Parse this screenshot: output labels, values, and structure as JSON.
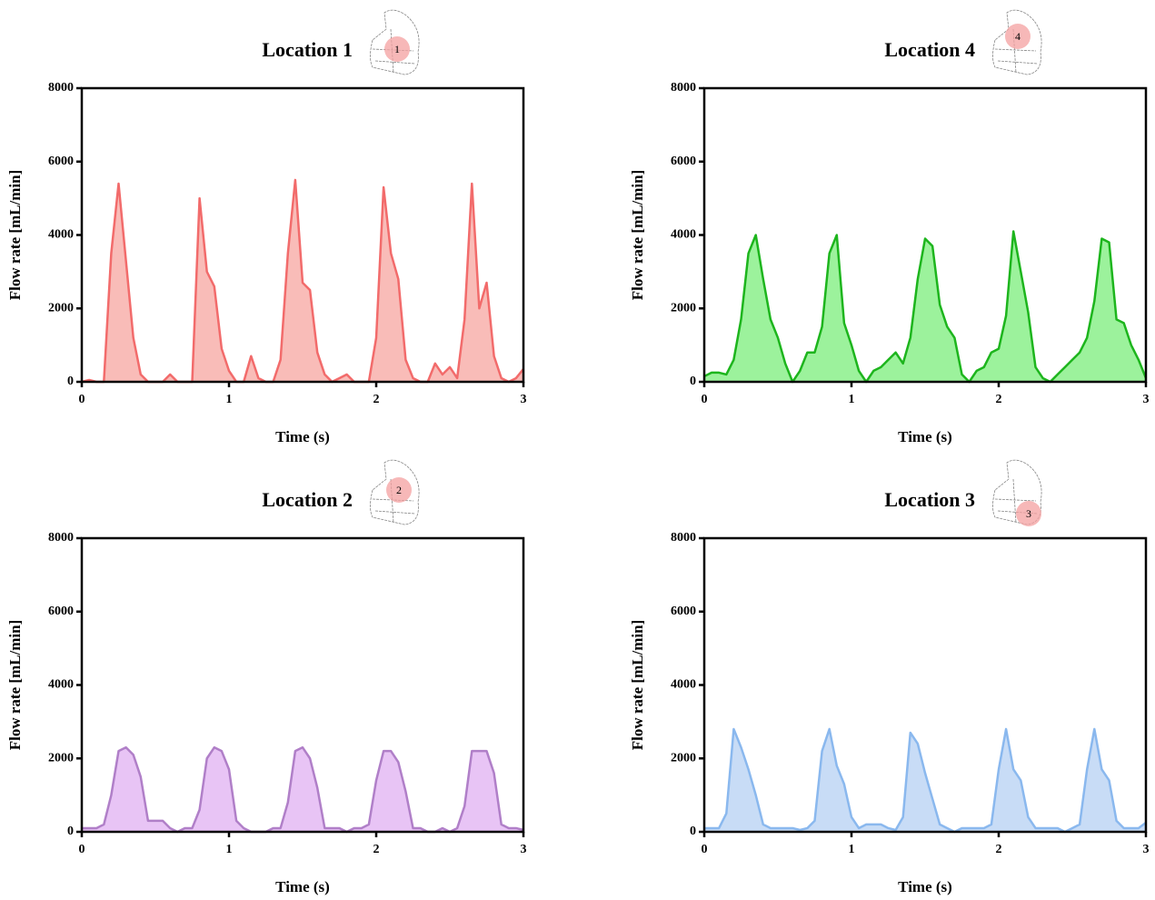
{
  "chart_data": [
    {
      "type": "area",
      "title": "Location 1",
      "marker_label": "1",
      "xlabel": "Time (s)",
      "ylabel": "Flow rate [mL/min]",
      "color": "#f26b6b",
      "fill_color": "#f9bcb8",
      "x": [
        0,
        0.05,
        0.1,
        0.15,
        0.2,
        0.25,
        0.3,
        0.35,
        0.4,
        0.45,
        0.5,
        0.55,
        0.6,
        0.65,
        0.7,
        0.75,
        0.8,
        0.85,
        0.9,
        0.95,
        1,
        1.05,
        1.1,
        1.15,
        1.2,
        1.25,
        1.3,
        1.35,
        1.4,
        1.45,
        1.5,
        1.55,
        1.6,
        1.65,
        1.7,
        1.75,
        1.8,
        1.85,
        1.9,
        1.95,
        2,
        2.05,
        2.1,
        2.15,
        2.2,
        2.25,
        2.3,
        2.35,
        2.4,
        2.45,
        2.5,
        2.55,
        2.6,
        2.65,
        2.7,
        2.75,
        2.8,
        2.85,
        2.9,
        2.95,
        3
      ],
      "values": [
        0,
        50,
        0,
        0,
        3500,
        5400,
        3300,
        1200,
        200,
        0,
        0,
        0,
        200,
        0,
        0,
        0,
        5000,
        3000,
        2600,
        900,
        300,
        0,
        0,
        700,
        100,
        0,
        0,
        600,
        3500,
        5500,
        2700,
        2500,
        800,
        200,
        0,
        100,
        200,
        0,
        0,
        0,
        1200,
        5300,
        3500,
        2800,
        600,
        100,
        0,
        0,
        500,
        200,
        400,
        100,
        1700,
        5400,
        2000,
        2700,
        700,
        100,
        0,
        100,
        350
      ],
      "xlim": [
        0,
        3
      ],
      "ylim": [
        0,
        8000
      ],
      "xticks": [
        0,
        1,
        2,
        3
      ],
      "yticks": [
        0,
        2000,
        4000,
        6000,
        8000
      ]
    },
    {
      "type": "area",
      "title": "Location 4",
      "marker_label": "4",
      "xlabel": "Time (s)",
      "ylabel": "Flow rate [mL/min]",
      "color": "#1db51d",
      "fill_color": "#9cf29c",
      "x": [
        0,
        0.05,
        0.1,
        0.15,
        0.2,
        0.25,
        0.3,
        0.35,
        0.4,
        0.45,
        0.5,
        0.55,
        0.6,
        0.65,
        0.7,
        0.75,
        0.8,
        0.85,
        0.9,
        0.95,
        1,
        1.05,
        1.1,
        1.15,
        1.2,
        1.25,
        1.3,
        1.35,
        1.4,
        1.45,
        1.5,
        1.55,
        1.6,
        1.65,
        1.7,
        1.75,
        1.8,
        1.85,
        1.9,
        1.95,
        2,
        2.05,
        2.1,
        2.15,
        2.2,
        2.25,
        2.3,
        2.35,
        2.4,
        2.45,
        2.5,
        2.55,
        2.6,
        2.65,
        2.7,
        2.75,
        2.8,
        2.85,
        2.9,
        2.95,
        3
      ],
      "values": [
        150,
        250,
        250,
        200,
        600,
        1700,
        3500,
        4000,
        2800,
        1700,
        1200,
        500,
        0,
        300,
        800,
        800,
        1500,
        3500,
        4000,
        1600,
        1000,
        300,
        0,
        300,
        400,
        600,
        800,
        500,
        1200,
        2800,
        3900,
        3700,
        2100,
        1500,
        1200,
        200,
        0,
        300,
        400,
        800,
        900,
        1800,
        4100,
        3000,
        1900,
        400,
        100,
        0,
        200,
        400,
        600,
        800,
        1200,
        2200,
        3900,
        3800,
        1700,
        1600,
        1000,
        600,
        100
      ],
      "xlim": [
        0,
        3
      ],
      "ylim": [
        0,
        8000
      ],
      "xticks": [
        0,
        1,
        2,
        3
      ],
      "yticks": [
        0,
        2000,
        4000,
        6000,
        8000
      ]
    },
    {
      "type": "area",
      "title": "Location 2",
      "marker_label": "2",
      "xlabel": "Time (s)",
      "ylabel": "Flow rate [mL/min]",
      "color": "#b07fc8",
      "fill_color": "#e8c4f5",
      "x": [
        0,
        0.05,
        0.1,
        0.15,
        0.2,
        0.25,
        0.3,
        0.35,
        0.4,
        0.45,
        0.5,
        0.55,
        0.6,
        0.65,
        0.7,
        0.75,
        0.8,
        0.85,
        0.9,
        0.95,
        1,
        1.05,
        1.1,
        1.15,
        1.2,
        1.25,
        1.3,
        1.35,
        1.4,
        1.45,
        1.5,
        1.55,
        1.6,
        1.65,
        1.7,
        1.75,
        1.8,
        1.85,
        1.9,
        1.95,
        2,
        2.05,
        2.1,
        2.15,
        2.2,
        2.25,
        2.3,
        2.35,
        2.4,
        2.45,
        2.5,
        2.55,
        2.6,
        2.65,
        2.7,
        2.75,
        2.8,
        2.85,
        2.9,
        2.95,
        3
      ],
      "values": [
        100,
        100,
        100,
        200,
        1000,
        2200,
        2300,
        2100,
        1500,
        300,
        300,
        300,
        100,
        0,
        100,
        100,
        600,
        2000,
        2300,
        2200,
        1700,
        300,
        100,
        0,
        0,
        0,
        100,
        100,
        800,
        2200,
        2300,
        2000,
        1200,
        100,
        100,
        100,
        0,
        100,
        100,
        200,
        1400,
        2200,
        2200,
        1900,
        1100,
        100,
        100,
        0,
        0,
        100,
        0,
        100,
        700,
        2200,
        2200,
        2200,
        1600,
        200,
        100,
        100,
        50
      ],
      "xlim": [
        0,
        3
      ],
      "ylim": [
        0,
        8000
      ],
      "xticks": [
        0,
        1,
        2,
        3
      ],
      "yticks": [
        0,
        2000,
        4000,
        6000,
        8000
      ]
    },
    {
      "type": "area",
      "title": "Location 3",
      "marker_label": "3",
      "xlabel": "Time (s)",
      "ylabel": "Flow rate [mL/min]",
      "color": "#8ab8ee",
      "fill_color": "#c8dcf6",
      "x": [
        0,
        0.05,
        0.1,
        0.15,
        0.2,
        0.25,
        0.3,
        0.35,
        0.4,
        0.45,
        0.5,
        0.55,
        0.6,
        0.65,
        0.7,
        0.75,
        0.8,
        0.85,
        0.9,
        0.95,
        1,
        1.05,
        1.1,
        1.15,
        1.2,
        1.25,
        1.3,
        1.35,
        1.4,
        1.45,
        1.5,
        1.55,
        1.6,
        1.65,
        1.7,
        1.75,
        1.8,
        1.85,
        1.9,
        1.95,
        2,
        2.05,
        2.1,
        2.15,
        2.2,
        2.25,
        2.3,
        2.35,
        2.4,
        2.45,
        2.5,
        2.55,
        2.6,
        2.65,
        2.7,
        2.75,
        2.8,
        2.85,
        2.9,
        2.95,
        3
      ],
      "values": [
        100,
        100,
        100,
        500,
        2800,
        2300,
        1700,
        1000,
        200,
        100,
        100,
        100,
        100,
        50,
        100,
        300,
        2200,
        2800,
        1800,
        1300,
        400,
        100,
        200,
        200,
        200,
        100,
        50,
        400,
        2700,
        2400,
        1600,
        900,
        200,
        100,
        0,
        100,
        100,
        100,
        100,
        200,
        1700,
        2800,
        1700,
        1400,
        400,
        100,
        100,
        100,
        100,
        0,
        100,
        200,
        1700,
        2800,
        1700,
        1400,
        300,
        100,
        100,
        100,
        250
      ],
      "xlim": [
        0,
        3
      ],
      "ylim": [
        0,
        8000
      ],
      "xticks": [
        0,
        1,
        2,
        3
      ],
      "yticks": [
        0,
        2000,
        4000,
        6000,
        8000
      ]
    }
  ]
}
